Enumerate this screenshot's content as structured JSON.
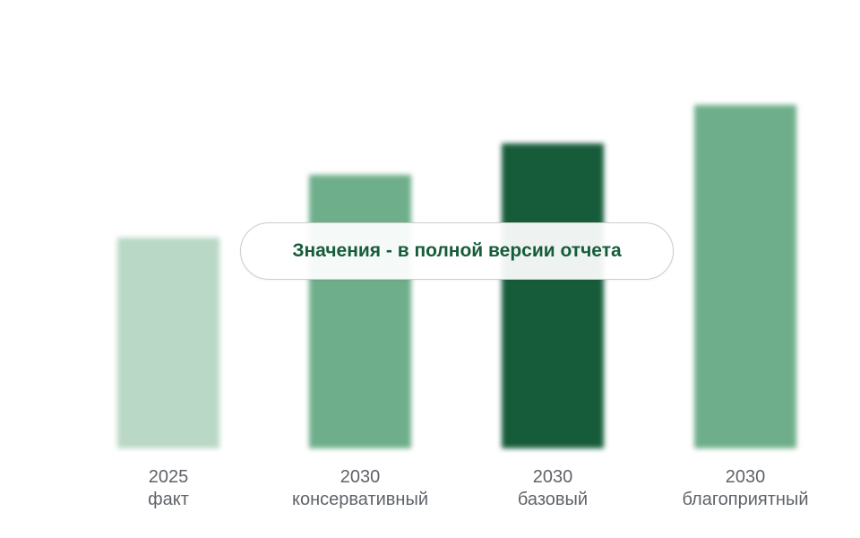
{
  "chart_data": {
    "type": "bar",
    "categories": [
      {
        "year": "2025",
        "scenario": "факт"
      },
      {
        "year": "2030",
        "scenario": "консервативный"
      },
      {
        "year": "2030",
        "scenario": "базовый"
      },
      {
        "year": "2030",
        "scenario": "благоприятный"
      }
    ],
    "values": [
      235,
      305,
      340,
      383
    ],
    "ylim": [
      0,
      400
    ],
    "grid": false,
    "value_labels_hidden": true,
    "bars_blurred": true,
    "bar_colors": [
      "#b9d8c5",
      "#6eae8a",
      "#175c3a",
      "#6eae8a"
    ]
  },
  "overlay": {
    "text": "Значения - в полной версии отчета",
    "text_color": "#175c3a",
    "border_color": "#c9cfcb"
  },
  "colors": {
    "label_text": "#5f6368",
    "background": "#ffffff"
  }
}
